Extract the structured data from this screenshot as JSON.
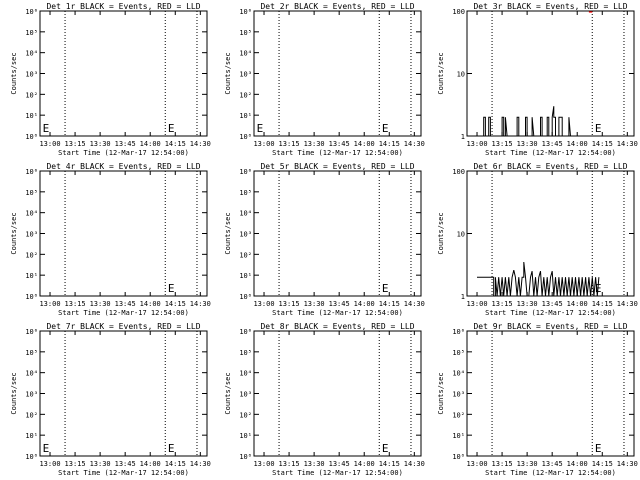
{
  "figure": {
    "x_tick_labels": [
      "13:00",
      "13:15",
      "13:30",
      "13:45",
      "14:00",
      "14:15",
      "14:30"
    ],
    "y_axis_label": "Counts/sec",
    "x_axis_label": "Start Time (12-Mar-17 12:54:00)",
    "marker_label": "E"
  },
  "chart_data": [
    {
      "panel": "Det 1r",
      "type": "line",
      "title": "Det 1r BLACK = Events, RED = LLD",
      "xlabel": "Start Time (12-Mar-17 12:54:00)",
      "ylabel": "Counts/sec",
      "scale": "log",
      "ylim": [
        1,
        1000000
      ],
      "ytick_values": [
        1,
        10,
        100,
        1000,
        10000,
        100000,
        1000000
      ],
      "xlim": [
        "12:54",
        "14:34"
      ],
      "xticks": [
        "13:00",
        "13:15",
        "13:30",
        "13:45",
        "14:00",
        "14:15",
        "14:30"
      ],
      "vlines": [
        "13:09",
        "14:09",
        "14:28"
      ],
      "markers": [
        "12:55",
        "14:10"
      ],
      "events": [],
      "lld": []
    },
    {
      "panel": "Det 2r",
      "type": "line",
      "title": "Det 2r BLACK = Events, RED = LLD",
      "xlabel": "Start Time (12-Mar-17 12:54:00)",
      "ylabel": "Counts/sec",
      "scale": "log",
      "ylim": [
        1,
        1000000
      ],
      "ytick_values": [
        1,
        10,
        100,
        1000,
        10000,
        100000,
        1000000
      ],
      "xlim": [
        "12:54",
        "14:34"
      ],
      "xticks": [
        "13:00",
        "13:15",
        "13:30",
        "13:45",
        "14:00",
        "14:15",
        "14:30"
      ],
      "vlines": [
        "13:09",
        "14:09",
        "14:28"
      ],
      "markers": [
        "12:55",
        "14:10"
      ],
      "events": [],
      "lld": []
    },
    {
      "panel": "Det 3r",
      "type": "line",
      "title": "Det 3r BLACK = Events, RED = LLD",
      "xlabel": "Start Time (12-Mar-17 12:54:00)",
      "ylabel": "Counts/sec",
      "scale": "log",
      "ylim": [
        1,
        100
      ],
      "ytick_values": [
        1,
        10,
        100
      ],
      "xlim": [
        "12:54",
        "14:34"
      ],
      "xticks": [
        "13:00",
        "13:15",
        "13:30",
        "13:45",
        "14:00",
        "14:15",
        "14:30"
      ],
      "vlines": [
        "13:09",
        "14:09",
        "14:28"
      ],
      "markers": [
        "14:10"
      ],
      "events": [
        [
          "13:04",
          1
        ],
        [
          "13:04",
          2
        ],
        [
          "13:05",
          2
        ],
        [
          "13:05",
          1
        ],
        [
          "13:07",
          1
        ],
        [
          "13:07",
          2
        ],
        [
          "13:08",
          2
        ],
        [
          "13:08",
          1
        ],
        [
          "13:15",
          1
        ],
        [
          "13:15",
          2
        ],
        [
          "13:16",
          2
        ],
        [
          "13:16",
          1
        ],
        [
          "13:17",
          1
        ],
        [
          "13:17",
          2
        ],
        [
          "13:18",
          1
        ],
        [
          "13:24",
          1
        ],
        [
          "13:24",
          2
        ],
        [
          "13:25",
          2
        ],
        [
          "13:25",
          1
        ],
        [
          "13:29",
          1
        ],
        [
          "13:29",
          2
        ],
        [
          "13:30",
          2
        ],
        [
          "13:30",
          1
        ],
        [
          "13:33",
          1
        ],
        [
          "13:33",
          2
        ],
        [
          "13:34",
          1
        ],
        [
          "13:38",
          1
        ],
        [
          "13:38",
          2
        ],
        [
          "13:39",
          2
        ],
        [
          "13:39",
          1
        ],
        [
          "13:42",
          1
        ],
        [
          "13:42",
          2
        ],
        [
          "13:43",
          2
        ],
        [
          "13:43",
          1
        ],
        [
          "13:45",
          1
        ],
        [
          "13:45",
          2
        ],
        [
          "13:46",
          3
        ],
        [
          "13:46",
          2
        ],
        [
          "13:47",
          2
        ],
        [
          "13:47",
          1
        ],
        [
          "13:49",
          1
        ],
        [
          "13:49",
          2
        ],
        [
          "13:51",
          2
        ],
        [
          "13:51",
          1
        ],
        [
          "13:55",
          1
        ],
        [
          "13:55",
          2
        ],
        [
          "13:56",
          1
        ],
        [
          "14:00",
          1
        ]
      ],
      "lld": [
        [
          "14:07",
          100
        ],
        [
          "14:09",
          100
        ]
      ]
    },
    {
      "panel": "Det 4r",
      "type": "line",
      "title": "Det 4r BLACK = Events, RED = LLD",
      "xlabel": "Start Time (12-Mar-17 12:54:00)",
      "ylabel": "Counts/sec",
      "scale": "log",
      "ylim": [
        1,
        1000000
      ],
      "ytick_values": [
        1,
        10,
        100,
        1000,
        10000,
        100000,
        1000000
      ],
      "xlim": [
        "12:54",
        "14:34"
      ],
      "xticks": [
        "13:00",
        "13:15",
        "13:30",
        "13:45",
        "14:00",
        "14:15",
        "14:30"
      ],
      "vlines": [
        "13:09",
        "14:09",
        "14:28"
      ],
      "markers": [
        "14:10"
      ],
      "events": [],
      "lld": []
    },
    {
      "panel": "Det 5r",
      "type": "line",
      "title": "Det 5r BLACK = Events, RED = LLD",
      "xlabel": "Start Time (12-Mar-17 12:54:00)",
      "ylabel": "Counts/sec",
      "scale": "log",
      "ylim": [
        1,
        1000000
      ],
      "ytick_values": [
        1,
        10,
        100,
        1000,
        10000,
        100000,
        1000000
      ],
      "xlim": [
        "12:54",
        "14:34"
      ],
      "xticks": [
        "13:00",
        "13:15",
        "13:30",
        "13:45",
        "14:00",
        "14:15",
        "14:30"
      ],
      "vlines": [
        "13:09",
        "14:09",
        "14:28"
      ],
      "markers": [
        "14:10"
      ],
      "events": [],
      "lld": []
    },
    {
      "panel": "Det 6r",
      "type": "line",
      "title": "Det 6r BLACK = Events, RED = LLD",
      "xlabel": "Start Time (12-Mar-17 12:54:00)",
      "ylabel": "Counts/sec",
      "scale": "log",
      "ylim": [
        1,
        100
      ],
      "ytick_values": [
        1,
        10,
        100
      ],
      "xlim": [
        "12:54",
        "14:34"
      ],
      "xticks": [
        "13:00",
        "13:15",
        "13:30",
        "13:45",
        "14:00",
        "14:15",
        "14:30"
      ],
      "vlines": [
        "13:09",
        "14:09",
        "14:28"
      ],
      "markers": [
        "14:10"
      ],
      "events": [
        [
          "13:00",
          2
        ],
        [
          "13:10",
          2
        ],
        [
          "13:10",
          1
        ],
        [
          "13:11",
          1
        ],
        [
          "13:11",
          2
        ],
        [
          "13:12",
          1
        ],
        [
          "13:13",
          2
        ],
        [
          "13:14",
          1
        ],
        [
          "13:15",
          2
        ],
        [
          "13:16",
          1
        ],
        [
          "13:17",
          2
        ],
        [
          "13:18",
          1
        ],
        [
          "13:19",
          2
        ],
        [
          "13:20",
          1
        ],
        [
          "13:21",
          2
        ],
        [
          "13:22",
          2.6
        ],
        [
          "13:23",
          2
        ],
        [
          "13:24",
          1
        ],
        [
          "13:25",
          2
        ],
        [
          "13:26",
          1
        ],
        [
          "13:27",
          2
        ],
        [
          "13:28",
          2
        ],
        [
          "13:28",
          3.5
        ],
        [
          "13:29",
          2
        ],
        [
          "13:30",
          1
        ],
        [
          "13:31",
          1
        ],
        [
          "13:32",
          2
        ],
        [
          "13:33",
          2.5
        ],
        [
          "13:34",
          1
        ],
        [
          "13:35",
          2
        ],
        [
          "13:36",
          1
        ],
        [
          "13:37",
          2
        ],
        [
          "13:38",
          2.5
        ],
        [
          "13:39",
          1
        ],
        [
          "13:40",
          2
        ],
        [
          "13:41",
          1
        ],
        [
          "13:42",
          2
        ],
        [
          "13:43",
          1
        ],
        [
          "13:44",
          2
        ],
        [
          "13:45",
          2.5
        ],
        [
          "13:46",
          1
        ],
        [
          "13:47",
          2
        ],
        [
          "13:48",
          1
        ],
        [
          "13:49",
          2
        ],
        [
          "13:50",
          1
        ],
        [
          "13:51",
          2
        ],
        [
          "13:52",
          1
        ],
        [
          "13:53",
          2
        ],
        [
          "13:54",
          1
        ],
        [
          "13:55",
          2
        ],
        [
          "13:56",
          1
        ],
        [
          "13:57",
          2
        ],
        [
          "13:58",
          1
        ],
        [
          "13:59",
          2
        ],
        [
          "14:00",
          1
        ],
        [
          "14:01",
          2
        ],
        [
          "14:02",
          1
        ],
        [
          "14:03",
          2
        ],
        [
          "14:04",
          1
        ],
        [
          "14:05",
          2
        ],
        [
          "14:06",
          1
        ],
        [
          "14:07",
          2
        ],
        [
          "14:08",
          1
        ],
        [
          "14:09",
          2
        ],
        [
          "14:10",
          1
        ],
        [
          "14:11",
          2
        ],
        [
          "14:12",
          1
        ],
        [
          "14:13",
          2
        ]
      ],
      "lld": []
    },
    {
      "panel": "Det 7r",
      "type": "line",
      "title": "Det 7r BLACK = Events, RED = LLD",
      "xlabel": "Start Time (12-Mar-17 12:54:00)",
      "ylabel": "Counts/sec",
      "scale": "log",
      "ylim": [
        1,
        1000000
      ],
      "ytick_values": [
        1,
        10,
        100,
        1000,
        10000,
        100000,
        1000000
      ],
      "xlim": [
        "12:54",
        "14:34"
      ],
      "xticks": [
        "13:00",
        "13:15",
        "13:30",
        "13:45",
        "14:00",
        "14:15",
        "14:30"
      ],
      "vlines": [
        "13:09",
        "14:09",
        "14:28"
      ],
      "markers": [
        "12:55",
        "14:10"
      ],
      "events": [],
      "lld": []
    },
    {
      "panel": "Det 8r",
      "type": "line",
      "title": "Det 8r BLACK = Events, RED = LLD",
      "xlabel": "Start Time (12-Mar-17 12:54:00)",
      "ylabel": "Counts/sec",
      "scale": "log",
      "ylim": [
        1,
        1000000
      ],
      "ytick_values": [
        1,
        10,
        100,
        1000,
        10000,
        100000,
        1000000
      ],
      "xlim": [
        "12:54",
        "14:34"
      ],
      "xticks": [
        "13:00",
        "13:15",
        "13:30",
        "13:45",
        "14:00",
        "14:15",
        "14:30"
      ],
      "vlines": [
        "13:09",
        "14:09",
        "14:28"
      ],
      "markers": [
        "14:10"
      ],
      "events": [],
      "lld": []
    },
    {
      "panel": "Det 9r",
      "type": "line",
      "title": "Det 9r BLACK = Events, RED = LLD",
      "xlabel": "Start Time (12-Mar-17 12:54:00)",
      "ylabel": "Counts/sec",
      "scale": "log",
      "ylim": [
        1,
        1000000
      ],
      "ytick_values": [
        1,
        10,
        100,
        1000,
        10000,
        100000,
        1000000
      ],
      "xlim": [
        "12:54",
        "14:34"
      ],
      "xticks": [
        "13:00",
        "13:15",
        "13:30",
        "13:45",
        "14:00",
        "14:15",
        "14:30"
      ],
      "vlines": [
        "13:09",
        "14:09",
        "14:28"
      ],
      "markers": [
        "14:10"
      ],
      "events": [],
      "lld": []
    }
  ]
}
